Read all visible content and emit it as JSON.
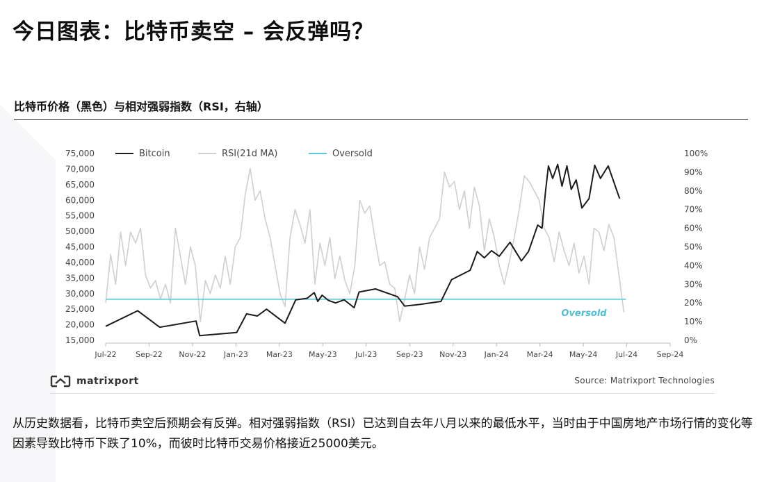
{
  "page": {
    "title": "今日图表：比特币卖空 – 会反弹吗？",
    "subtitle": "比特币价格（黑色）与相对强弱指数（RSI，右轴）",
    "brand": "matrixport",
    "source": "Source: Matrixport Technologies",
    "body": "从历史数据看，比特币卖空后预期会有反弹。相对强弱指数（RSI）已达到自去年八月以来的最低水平，当时由于中国房地产市场行情的变化等因素导致比特币下跌了10%，而彼时比特币交易价格接近25000美元。",
    "colors": {
      "bitcoin": "#1a1a1a",
      "rsi": "#cfcfcf",
      "oversold": "#5bc8db",
      "oversold_label": "#4fbfd4"
    }
  },
  "chart_data": {
    "type": "line",
    "title": "",
    "legend": {
      "placement": "top-left",
      "entries": [
        "Bitcoin",
        "RSI(21d MA)",
        "Oversold"
      ]
    },
    "x_tick_labels": [
      "Jul-22",
      "Sep-22",
      "Nov-22",
      "Jan-23",
      "Mar-23",
      "May-23",
      "Jul-23",
      "Sep-23",
      "Nov-23",
      "Jan-24",
      "Mar-24",
      "May-24",
      "Jul-24",
      "Sep-24"
    ],
    "x_range": [
      "2022-07-01",
      "2024-09-01"
    ],
    "y_left": {
      "min": 15000,
      "max": 75000,
      "ticks": [
        "15,000",
        "20,000",
        "25,000",
        "30,000",
        "35,000",
        "40,000",
        "45,000",
        "50,000",
        "55,000",
        "60,000",
        "65,000",
        "70,000",
        "75,000"
      ]
    },
    "y_right": {
      "min": 0,
      "max": 100,
      "ticks": [
        "0%",
        "10%",
        "20%",
        "30%",
        "40%",
        "50%",
        "60%",
        "70%",
        "80%",
        "90%",
        "100%"
      ]
    },
    "oversold_label": "Oversold",
    "series": [
      {
        "name": "Bitcoin",
        "axis": "left",
        "points": [
          [
            "2022-07-01",
            19500
          ],
          [
            "2022-08-15",
            24500
          ],
          [
            "2022-09-15",
            19200
          ],
          [
            "2022-11-05",
            21200
          ],
          [
            "2022-11-10",
            16500
          ],
          [
            "2023-01-01",
            17500
          ],
          [
            "2023-01-15",
            23500
          ],
          [
            "2023-01-30",
            22800
          ],
          [
            "2023-02-12",
            25000
          ],
          [
            "2023-03-10",
            20500
          ],
          [
            "2023-03-25",
            28000
          ],
          [
            "2023-04-10",
            28500
          ],
          [
            "2023-04-20",
            30300
          ],
          [
            "2023-04-25",
            27500
          ],
          [
            "2023-05-01",
            29500
          ],
          [
            "2023-05-10",
            27800
          ],
          [
            "2023-05-20",
            27000
          ],
          [
            "2023-06-01",
            28000
          ],
          [
            "2023-06-15",
            25500
          ],
          [
            "2023-06-22",
            30500
          ],
          [
            "2023-07-15",
            31500
          ],
          [
            "2023-08-15",
            29000
          ],
          [
            "2023-08-25",
            26000
          ],
          [
            "2023-09-15",
            26500
          ],
          [
            "2023-10-15",
            27500
          ],
          [
            "2023-10-30",
            34500
          ],
          [
            "2023-11-25",
            37500
          ],
          [
            "2023-12-05",
            43500
          ],
          [
            "2023-12-15",
            41500
          ],
          [
            "2023-12-25",
            43800
          ],
          [
            "2024-01-05",
            42000
          ],
          [
            "2024-01-20",
            46500
          ],
          [
            "2024-02-05",
            40500
          ],
          [
            "2024-02-15",
            43500
          ],
          [
            "2024-02-28",
            52000
          ],
          [
            "2024-03-05",
            51000
          ],
          [
            "2024-03-10",
            63000
          ],
          [
            "2024-03-14",
            71000
          ],
          [
            "2024-03-20",
            67000
          ],
          [
            "2024-03-27",
            71500
          ],
          [
            "2024-04-02",
            64500
          ],
          [
            "2024-04-09",
            71000
          ],
          [
            "2024-04-15",
            63500
          ],
          [
            "2024-04-22",
            66500
          ],
          [
            "2024-04-30",
            57500
          ],
          [
            "2024-05-10",
            60500
          ],
          [
            "2024-05-18",
            71200
          ],
          [
            "2024-05-26",
            67000
          ],
          [
            "2024-06-06",
            71000
          ],
          [
            "2024-06-22",
            60500
          ]
        ]
      },
      {
        "name": "RSI(21d MA)",
        "axis": "right",
        "points": [
          [
            "2022-07-01",
            20
          ],
          [
            "2022-07-08",
            46
          ],
          [
            "2022-07-15",
            30
          ],
          [
            "2022-07-22",
            58
          ],
          [
            "2022-07-29",
            40
          ],
          [
            "2022-08-05",
            58
          ],
          [
            "2022-08-12",
            52
          ],
          [
            "2022-08-19",
            60
          ],
          [
            "2022-08-26",
            35
          ],
          [
            "2022-09-02",
            28
          ],
          [
            "2022-09-09",
            32
          ],
          [
            "2022-09-16",
            22
          ],
          [
            "2022-09-23",
            30
          ],
          [
            "2022-09-30",
            20
          ],
          [
            "2022-10-07",
            60
          ],
          [
            "2022-10-14",
            45
          ],
          [
            "2022-10-21",
            30
          ],
          [
            "2022-10-28",
            50
          ],
          [
            "2022-11-04",
            40
          ],
          [
            "2022-11-11",
            10
          ],
          [
            "2022-11-18",
            32
          ],
          [
            "2022-11-25",
            25
          ],
          [
            "2022-12-02",
            35
          ],
          [
            "2022-12-09",
            28
          ],
          [
            "2022-12-16",
            45
          ],
          [
            "2022-12-23",
            30
          ],
          [
            "2022-12-30",
            50
          ],
          [
            "2023-01-06",
            55
          ],
          [
            "2023-01-13",
            78
          ],
          [
            "2023-01-20",
            92
          ],
          [
            "2023-01-27",
            75
          ],
          [
            "2023-02-03",
            80
          ],
          [
            "2023-02-10",
            65
          ],
          [
            "2023-02-17",
            55
          ],
          [
            "2023-02-24",
            40
          ],
          [
            "2023-03-03",
            25
          ],
          [
            "2023-03-10",
            18
          ],
          [
            "2023-03-17",
            55
          ],
          [
            "2023-03-24",
            70
          ],
          [
            "2023-03-31",
            62
          ],
          [
            "2023-04-07",
            52
          ],
          [
            "2023-04-14",
            70
          ],
          [
            "2023-04-21",
            30
          ],
          [
            "2023-04-28",
            52
          ],
          [
            "2023-05-05",
            40
          ],
          [
            "2023-05-12",
            55
          ],
          [
            "2023-05-19",
            33
          ],
          [
            "2023-05-26",
            45
          ],
          [
            "2023-06-02",
            32
          ],
          [
            "2023-06-09",
            25
          ],
          [
            "2023-06-16",
            40
          ],
          [
            "2023-06-23",
            75
          ],
          [
            "2023-06-30",
            68
          ],
          [
            "2023-07-07",
            72
          ],
          [
            "2023-07-14",
            55
          ],
          [
            "2023-07-21",
            40
          ],
          [
            "2023-07-28",
            42
          ],
          [
            "2023-08-04",
            30
          ],
          [
            "2023-08-11",
            28
          ],
          [
            "2023-08-18",
            10
          ],
          [
            "2023-08-25",
            22
          ],
          [
            "2023-09-01",
            35
          ],
          [
            "2023-09-08",
            25
          ],
          [
            "2023-09-15",
            50
          ],
          [
            "2023-09-22",
            38
          ],
          [
            "2023-09-29",
            55
          ],
          [
            "2023-10-06",
            60
          ],
          [
            "2023-10-13",
            65
          ],
          [
            "2023-10-20",
            90
          ],
          [
            "2023-10-27",
            82
          ],
          [
            "2023-11-03",
            85
          ],
          [
            "2023-11-10",
            70
          ],
          [
            "2023-11-17",
            80
          ],
          [
            "2023-11-24",
            60
          ],
          [
            "2023-12-01",
            82
          ],
          [
            "2023-12-08",
            72
          ],
          [
            "2023-12-15",
            48
          ],
          [
            "2023-12-22",
            65
          ],
          [
            "2023-12-29",
            55
          ],
          [
            "2024-01-05",
            40
          ],
          [
            "2024-01-12",
            30
          ],
          [
            "2024-01-19",
            42
          ],
          [
            "2024-01-26",
            55
          ],
          [
            "2024-02-02",
            70
          ],
          [
            "2024-02-09",
            88
          ],
          [
            "2024-02-16",
            85
          ],
          [
            "2024-02-23",
            80
          ],
          [
            "2024-03-01",
            75
          ],
          [
            "2024-03-08",
            60
          ],
          [
            "2024-03-15",
            55
          ],
          [
            "2024-03-22",
            42
          ],
          [
            "2024-03-29",
            58
          ],
          [
            "2024-04-05",
            48
          ],
          [
            "2024-04-12",
            40
          ],
          [
            "2024-04-19",
            52
          ],
          [
            "2024-04-26",
            36
          ],
          [
            "2024-05-03",
            45
          ],
          [
            "2024-05-10",
            30
          ],
          [
            "2024-05-17",
            60
          ],
          [
            "2024-05-24",
            58
          ],
          [
            "2024-05-31",
            48
          ],
          [
            "2024-06-07",
            62
          ],
          [
            "2024-06-14",
            55
          ],
          [
            "2024-06-21",
            35
          ],
          [
            "2024-06-28",
            15
          ]
        ]
      },
      {
        "name": "Oversold",
        "axis": "right",
        "value": 22,
        "x_range": [
          "2022-07-01",
          "2024-07-01"
        ]
      }
    ],
    "grid": false
  }
}
